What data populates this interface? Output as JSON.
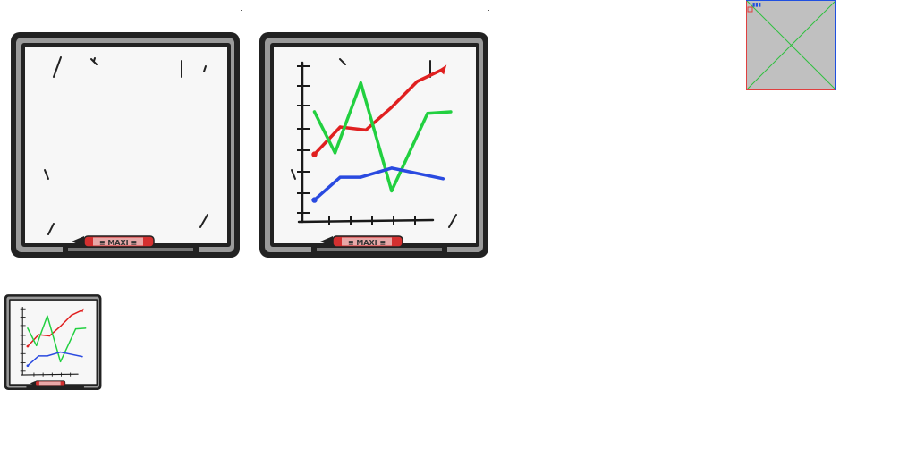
{
  "sheet": {
    "background": "#ffffff"
  },
  "boards": [
    {
      "name": "board-empty",
      "has_chart": false
    },
    {
      "name": "board-chart",
      "has_chart": true
    },
    {
      "name": "board-thumb",
      "has_chart": true
    }
  ],
  "marker": {
    "label": "≡ MAXI ≡",
    "color": "#d43030"
  },
  "colors": {
    "frame": "#222222",
    "frame_inner": "#8c8c8c",
    "board": "#f7f7f7",
    "axis": "#1a1a1a",
    "red_series": "#e02020",
    "green_series": "#22d040",
    "blue_series": "#2a4ae0"
  },
  "chart_data": {
    "type": "line",
    "title": "",
    "xlabel": "",
    "ylabel": "",
    "x": [
      1,
      2,
      3,
      4,
      5,
      6
    ],
    "xlim": [
      0.6,
      7.0
    ],
    "ylim": [
      0,
      10
    ],
    "grid": false,
    "legend": "none",
    "series": [
      {
        "color": "#e02020",
        "values": [
          4.2,
          6.0,
          5.8,
          7.3,
          9.0,
          9.8
        ],
        "x": [
          1,
          2,
          3,
          4,
          5,
          6
        ]
      },
      {
        "color": "#22d040",
        "values": [
          7.0,
          4.3,
          8.9,
          1.8,
          6.9,
          7.0
        ],
        "x": [
          1,
          1.8,
          2.8,
          4,
          5.4,
          6.3
        ]
      },
      {
        "color": "#2a4ae0",
        "values": [
          1.2,
          2.7,
          2.7,
          3.3,
          2.6
        ],
        "x": [
          1,
          2,
          2.8,
          4,
          6
        ]
      }
    ]
  },
  "placeholder": {
    "label": "▮▮▮",
    "fill": "#c0c0c0",
    "border_left": "#e04040",
    "border_right": "#2050e0",
    "cross": "#30c040"
  }
}
